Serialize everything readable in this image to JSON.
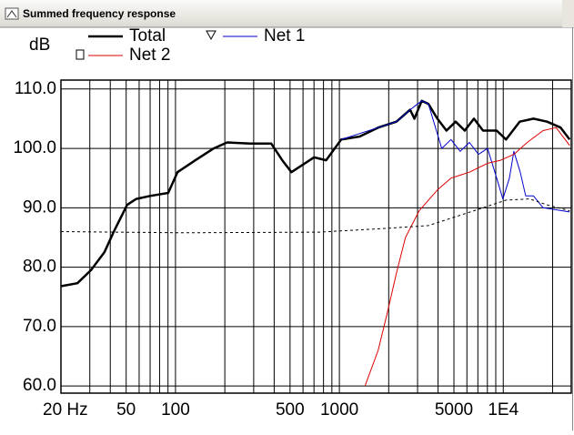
{
  "window": {
    "title": "Summed frequency response"
  },
  "chart_data": {
    "type": "line",
    "ylabel": "dB",
    "xscale": "log",
    "xlim": [
      20,
      26000
    ],
    "ylim": [
      58.8,
      111.5
    ],
    "xticks": [
      {
        "value": 20,
        "label": "20 Hz"
      },
      50,
      100,
      500,
      1000,
      5000,
      {
        "value": 10000,
        "label": "1E4"
      }
    ],
    "minor_xgrid": [
      30,
      40,
      60,
      70,
      80,
      90,
      200,
      300,
      400,
      600,
      700,
      800,
      900,
      2000,
      3000,
      4000,
      6000,
      7000,
      8000,
      9000,
      20000
    ],
    "yticks": [
      {
        "value": 60,
        "label": "60.0"
      },
      {
        "value": 70,
        "label": "70.0"
      },
      {
        "value": 80,
        "label": "80.0"
      },
      {
        "value": 90,
        "label": "90.0"
      },
      {
        "value": 100,
        "label": "100.0"
      },
      {
        "value": 110,
        "label": "110.0"
      }
    ],
    "grid": true,
    "series": [
      {
        "name": "Total",
        "color": "#000000",
        "width": 2.5,
        "x": [
          20,
          25.2,
          30.5,
          36.8,
          42,
          50.7,
          57.6,
          70,
          90.3,
          102.8,
          132.3,
          171,
          207,
          286,
          384,
          448,
          510,
          580,
          700,
          830,
          1026,
          1330,
          1723,
          2230,
          2700,
          2870,
          3180,
          3490,
          3960,
          4500,
          5120,
          5820,
          6620,
          7530,
          9120,
          10400,
          12600,
          15300,
          18500,
          22400,
          25400
        ],
        "values": [
          76.8,
          77.3,
          79.5,
          82.5,
          86,
          90.5,
          91.5,
          92,
          92.5,
          96,
          98,
          100,
          101,
          100.8,
          100.8,
          98,
          96,
          97,
          98.5,
          98,
          101.5,
          102,
          103.5,
          104.5,
          106.5,
          105,
          108,
          107.5,
          105,
          103,
          104.5,
          103,
          105,
          103,
          103,
          101.5,
          104.5,
          105,
          104.5,
          103.5,
          101.5
        ]
      },
      {
        "name": "Net 1",
        "color": "#0000cc",
        "width": 1,
        "marker": "triangle",
        "x": [
          1026,
          1723,
          2230,
          2700,
          3180,
          3490,
          4210,
          4800,
          5460,
          6210,
          7060,
          8020,
          9120,
          9950,
          10900,
          11600,
          12700,
          13700,
          15300,
          17500,
          25400
        ],
        "values": [
          101.5,
          103.5,
          104.5,
          106.5,
          108,
          107.5,
          100,
          101.5,
          99.5,
          101,
          99,
          100,
          95,
          91.5,
          95,
          99.5,
          96,
          92,
          92,
          90,
          89.3
        ]
      },
      {
        "name": "Net 2",
        "color": "#dd0000",
        "width": 1,
        "marker": "square",
        "x": [
          1433,
          1723,
          1950,
          2230,
          2530,
          3070,
          3960,
          4800,
          6210,
          8020,
          9640,
          11600,
          14000,
          17500,
          21000,
          25400
        ],
        "values": [
          60,
          66,
          72,
          79,
          85,
          89.5,
          93,
          95,
          96,
          97.5,
          98,
          99,
          101,
          103,
          103.5,
          100.5
        ]
      },
      {
        "color": "#000000",
        "width": 1,
        "dash": true,
        "x": [
          20,
          110,
          750,
          1830,
          3490,
          6620,
          10400,
          14500,
          18500,
          25400
        ],
        "values": [
          86,
          85.8,
          85.9,
          86.5,
          87,
          89.5,
          91.3,
          91.5,
          90.5,
          89.5
        ]
      }
    ]
  }
}
